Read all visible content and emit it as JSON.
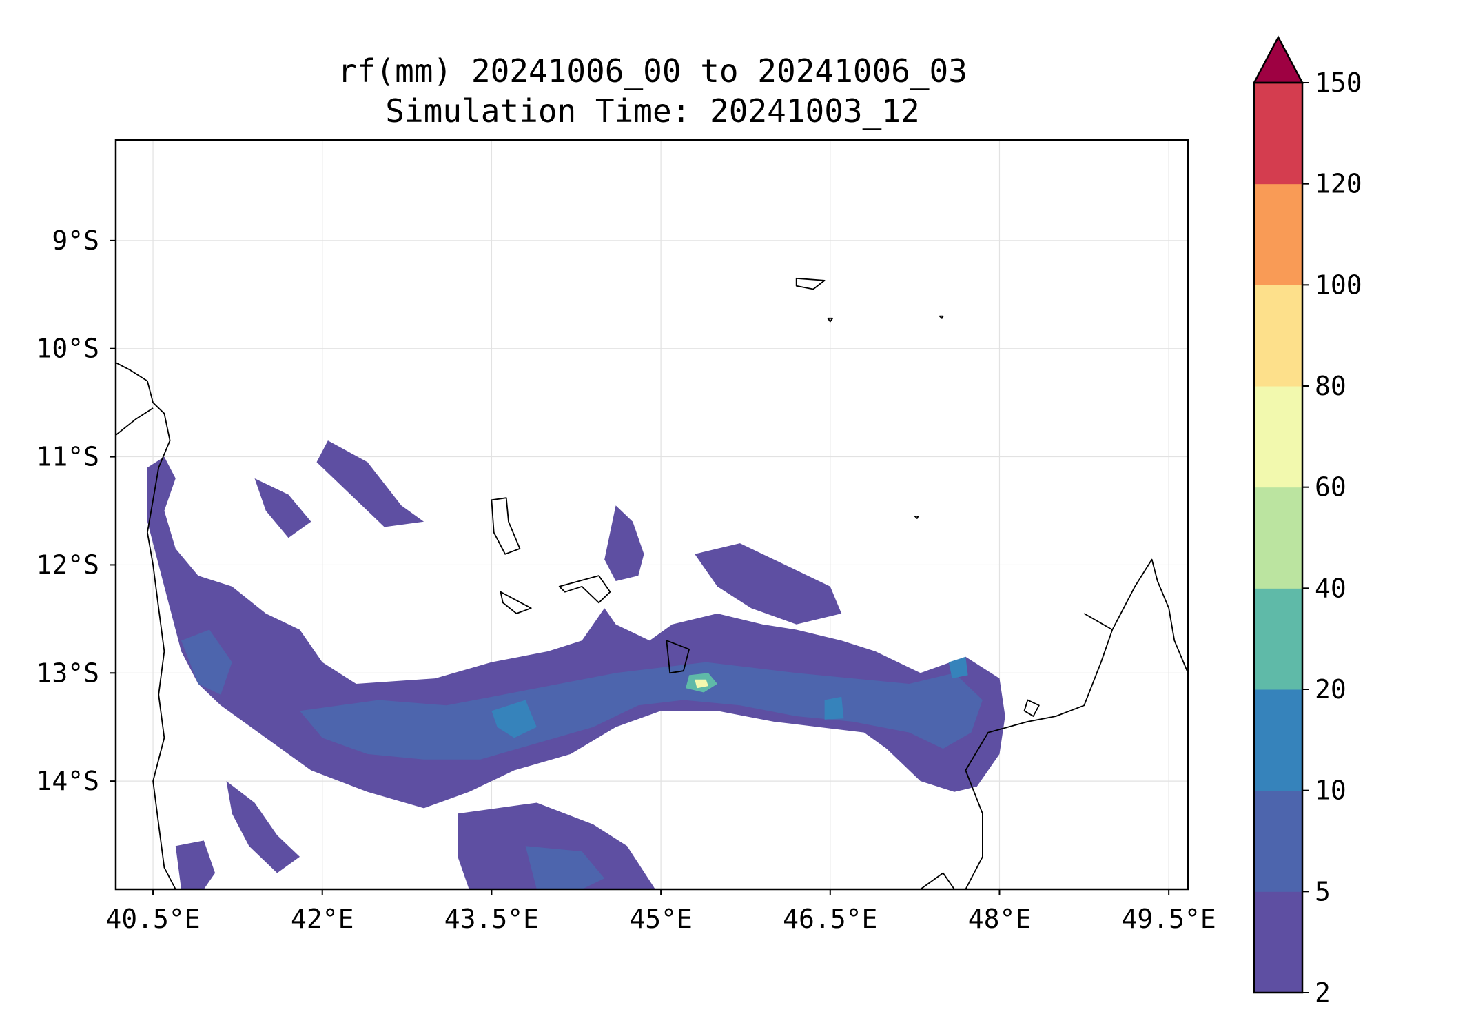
{
  "chart_data": {
    "type": "contour-map",
    "title": "rf(mm) 20241006_00 to 20241006_03",
    "subtitle": "Simulation Time: 20241003_12",
    "xlabel": "",
    "ylabel": "",
    "xlim": [
      40.17,
      49.67
    ],
    "ylim": [
      -15.0,
      -8.07
    ],
    "grid": true,
    "x_ticks": [
      {
        "value": 40.5,
        "label": "40.5°E"
      },
      {
        "value": 42.0,
        "label": "42°E"
      },
      {
        "value": 43.5,
        "label": "43.5°E"
      },
      {
        "value": 45.0,
        "label": "45°E"
      },
      {
        "value": 46.5,
        "label": "46.5°E"
      },
      {
        "value": 48.0,
        "label": "48°E"
      },
      {
        "value": 49.5,
        "label": "49.5°E"
      }
    ],
    "y_ticks": [
      {
        "value": -9,
        "label": "9°S"
      },
      {
        "value": -10,
        "label": "10°S"
      },
      {
        "value": -11,
        "label": "11°S"
      },
      {
        "value": -12,
        "label": "12°S"
      },
      {
        "value": -13,
        "label": "13°S"
      },
      {
        "value": -14,
        "label": "14°S"
      }
    ],
    "colorbar": {
      "levels": [
        2,
        5,
        10,
        20,
        40,
        60,
        80,
        100,
        120,
        150
      ],
      "labels": [
        "2",
        "5",
        "10",
        "20",
        "40",
        "60",
        "80",
        "100",
        "120",
        "150"
      ],
      "colors": [
        "#5e4fa2",
        "#4d65ad",
        "#3683bb",
        "#5fbaa8",
        "#bbe4a0",
        "#f2f9ae",
        "#fde08b",
        "#f99b56",
        "#d43d4f"
      ],
      "extend_color": "#9e0142",
      "extend": "max"
    },
    "rain_regions": [
      {
        "level": 0,
        "points": [
          [
            40.45,
            -11.1
          ],
          [
            40.6,
            -11.0
          ],
          [
            40.7,
            -11.2
          ],
          [
            40.6,
            -11.5
          ],
          [
            40.7,
            -11.85
          ],
          [
            40.9,
            -12.1
          ],
          [
            41.2,
            -12.2
          ],
          [
            41.5,
            -12.45
          ],
          [
            41.8,
            -12.6
          ],
          [
            42.0,
            -12.9
          ],
          [
            42.3,
            -13.1
          ],
          [
            43.0,
            -13.05
          ],
          [
            43.5,
            -12.9
          ],
          [
            44.0,
            -12.8
          ],
          [
            44.3,
            -12.7
          ],
          [
            44.5,
            -12.4
          ],
          [
            44.6,
            -12.55
          ],
          [
            44.9,
            -12.7
          ],
          [
            45.1,
            -12.55
          ],
          [
            45.3,
            -12.5
          ],
          [
            45.5,
            -12.45
          ],
          [
            45.9,
            -12.55
          ],
          [
            46.2,
            -12.6
          ],
          [
            46.6,
            -12.7
          ],
          [
            46.9,
            -12.8
          ],
          [
            47.3,
            -13.0
          ],
          [
            47.7,
            -12.85
          ],
          [
            48.0,
            -13.05
          ],
          [
            48.05,
            -13.4
          ],
          [
            48.0,
            -13.75
          ],
          [
            47.8,
            -14.05
          ],
          [
            47.6,
            -14.1
          ],
          [
            47.3,
            -14.0
          ],
          [
            47.0,
            -13.7
          ],
          [
            46.8,
            -13.55
          ],
          [
            46.4,
            -13.5
          ],
          [
            46.0,
            -13.45
          ],
          [
            45.5,
            -13.35
          ],
          [
            45.0,
            -13.35
          ],
          [
            44.6,
            -13.5
          ],
          [
            44.2,
            -13.75
          ],
          [
            43.7,
            -13.9
          ],
          [
            43.3,
            -14.1
          ],
          [
            42.9,
            -14.25
          ],
          [
            42.4,
            -14.1
          ],
          [
            41.9,
            -13.9
          ],
          [
            41.5,
            -13.6
          ],
          [
            41.1,
            -13.3
          ],
          [
            40.9,
            -13.1
          ],
          [
            40.75,
            -12.8
          ],
          [
            40.65,
            -12.4
          ],
          [
            40.55,
            -12.0
          ],
          [
            40.45,
            -11.6
          ]
        ]
      },
      {
        "level": 0,
        "points": [
          [
            43.2,
            -14.3
          ],
          [
            43.9,
            -14.2
          ],
          [
            44.4,
            -14.4
          ],
          [
            44.7,
            -14.6
          ],
          [
            44.95,
            -15.0
          ],
          [
            43.3,
            -15.0
          ],
          [
            43.2,
            -14.7
          ]
        ]
      },
      {
        "level": 0,
        "points": [
          [
            42.05,
            -10.85
          ],
          [
            42.4,
            -11.05
          ],
          [
            42.7,
            -11.45
          ],
          [
            42.9,
            -11.6
          ],
          [
            42.55,
            -11.65
          ],
          [
            42.2,
            -11.3
          ],
          [
            41.95,
            -11.05
          ]
        ]
      },
      {
        "level": 0,
        "points": [
          [
            41.4,
            -11.2
          ],
          [
            41.7,
            -11.35
          ],
          [
            41.9,
            -11.6
          ],
          [
            41.7,
            -11.75
          ],
          [
            41.5,
            -11.5
          ]
        ]
      },
      {
        "level": 0,
        "points": [
          [
            44.5,
            -11.95
          ],
          [
            44.6,
            -11.45
          ],
          [
            44.75,
            -11.6
          ],
          [
            44.85,
            -11.9
          ],
          [
            44.8,
            -12.1
          ],
          [
            44.6,
            -12.15
          ]
        ]
      },
      {
        "level": 0,
        "points": [
          [
            45.3,
            -11.9
          ],
          [
            45.7,
            -11.8
          ],
          [
            46.1,
            -12.0
          ],
          [
            46.5,
            -12.2
          ],
          [
            46.6,
            -12.45
          ],
          [
            46.2,
            -12.55
          ],
          [
            45.8,
            -12.4
          ],
          [
            45.5,
            -12.2
          ]
        ]
      },
      {
        "level": 0,
        "points": [
          [
            40.7,
            -14.6
          ],
          [
            40.95,
            -14.55
          ],
          [
            41.05,
            -14.85
          ],
          [
            40.95,
            -15.0
          ],
          [
            40.75,
            -15.0
          ]
        ]
      },
      {
        "level": 0,
        "points": [
          [
            41.15,
            -14.0
          ],
          [
            41.4,
            -14.2
          ],
          [
            41.6,
            -14.5
          ],
          [
            41.8,
            -14.7
          ],
          [
            41.6,
            -14.85
          ],
          [
            41.35,
            -14.6
          ],
          [
            41.2,
            -14.3
          ]
        ]
      },
      {
        "level": 1,
        "points": [
          [
            40.75,
            -12.7
          ],
          [
            41.0,
            -12.6
          ],
          [
            41.2,
            -12.9
          ],
          [
            41.1,
            -13.2
          ],
          [
            40.9,
            -13.1
          ]
        ]
      },
      {
        "level": 1,
        "points": [
          [
            41.8,
            -13.35
          ],
          [
            42.5,
            -13.25
          ],
          [
            43.1,
            -13.3
          ],
          [
            43.6,
            -13.2
          ],
          [
            44.1,
            -13.1
          ],
          [
            44.6,
            -13.0
          ],
          [
            45.0,
            -12.95
          ],
          [
            45.4,
            -12.9
          ],
          [
            45.8,
            -12.95
          ],
          [
            46.2,
            -13.0
          ],
          [
            46.7,
            -13.05
          ],
          [
            47.2,
            -13.1
          ],
          [
            47.6,
            -13.0
          ],
          [
            47.85,
            -13.25
          ],
          [
            47.75,
            -13.55
          ],
          [
            47.5,
            -13.7
          ],
          [
            47.2,
            -13.55
          ],
          [
            46.7,
            -13.45
          ],
          [
            46.2,
            -13.4
          ],
          [
            45.7,
            -13.3
          ],
          [
            45.2,
            -13.25
          ],
          [
            44.8,
            -13.3
          ],
          [
            44.4,
            -13.5
          ],
          [
            43.9,
            -13.65
          ],
          [
            43.4,
            -13.8
          ],
          [
            42.9,
            -13.8
          ],
          [
            42.4,
            -13.75
          ],
          [
            42.0,
            -13.6
          ]
        ]
      },
      {
        "level": 1,
        "points": [
          [
            43.8,
            -14.6
          ],
          [
            44.3,
            -14.65
          ],
          [
            44.5,
            -14.9
          ],
          [
            44.3,
            -15.0
          ],
          [
            43.9,
            -15.0
          ]
        ]
      },
      {
        "level": 2,
        "points": [
          [
            43.5,
            -13.35
          ],
          [
            43.8,
            -13.25
          ],
          [
            43.9,
            -13.5
          ],
          [
            43.7,
            -13.6
          ],
          [
            43.55,
            -13.5
          ]
        ]
      },
      {
        "level": 2,
        "points": [
          [
            46.45,
            -13.25
          ],
          [
            46.6,
            -13.22
          ],
          [
            46.62,
            -13.42
          ],
          [
            46.45,
            -13.43
          ]
        ]
      },
      {
        "level": 2,
        "points": [
          [
            47.55,
            -12.9
          ],
          [
            47.7,
            -12.85
          ],
          [
            47.72,
            -13.02
          ],
          [
            47.58,
            -13.05
          ]
        ]
      },
      {
        "level": 3,
        "points": [
          [
            45.25,
            -13.02
          ],
          [
            45.42,
            -13.0
          ],
          [
            45.5,
            -13.1
          ],
          [
            45.38,
            -13.18
          ],
          [
            45.22,
            -13.14
          ]
        ]
      },
      {
        "level": 5,
        "points": [
          [
            45.3,
            -13.06
          ],
          [
            45.4,
            -13.06
          ],
          [
            45.42,
            -13.12
          ],
          [
            45.32,
            -13.14
          ]
        ]
      }
    ],
    "coastlines": [
      {
        "closed": false,
        "points": [
          [
            40.17,
            -10.13
          ],
          [
            40.3,
            -10.2
          ],
          [
            40.45,
            -10.3
          ],
          [
            40.5,
            -10.5
          ],
          [
            40.6,
            -10.6
          ],
          [
            40.65,
            -10.85
          ],
          [
            40.55,
            -11.1
          ],
          [
            40.5,
            -11.4
          ],
          [
            40.45,
            -11.7
          ],
          [
            40.5,
            -12.0
          ],
          [
            40.55,
            -12.4
          ],
          [
            40.6,
            -12.8
          ],
          [
            40.55,
            -13.2
          ],
          [
            40.6,
            -13.6
          ],
          [
            40.5,
            -14.0
          ],
          [
            40.55,
            -14.4
          ],
          [
            40.6,
            -14.8
          ],
          [
            40.7,
            -15.0
          ]
        ]
      },
      {
        "closed": false,
        "points": [
          [
            40.17,
            -10.8
          ],
          [
            40.35,
            -10.65
          ],
          [
            40.5,
            -10.55
          ]
        ]
      },
      {
        "closed": false,
        "points": [
          [
            47.3,
            -15.0
          ],
          [
            47.5,
            -14.85
          ],
          [
            47.6,
            -15.0
          ]
        ]
      },
      {
        "closed": false,
        "points": [
          [
            47.7,
            -15.0
          ],
          [
            47.85,
            -14.7
          ],
          [
            47.85,
            -14.3
          ],
          [
            47.7,
            -13.9
          ],
          [
            47.9,
            -13.55
          ],
          [
            48.25,
            -13.45
          ],
          [
            48.5,
            -13.4
          ],
          [
            48.75,
            -13.3
          ],
          [
            48.9,
            -12.9
          ],
          [
            49.0,
            -12.6
          ],
          [
            49.2,
            -12.2
          ],
          [
            49.35,
            -11.95
          ],
          [
            49.4,
            -12.15
          ],
          [
            49.5,
            -12.4
          ],
          [
            49.55,
            -12.7
          ],
          [
            49.67,
            -13.0
          ]
        ]
      },
      {
        "closed": false,
        "points": [
          [
            48.75,
            -12.45
          ],
          [
            49.0,
            -12.6
          ]
        ]
      },
      {
        "closed": true,
        "points": [
          [
            43.5,
            -11.4
          ],
          [
            43.63,
            -11.38
          ],
          [
            43.65,
            -11.6
          ],
          [
            43.75,
            -11.85
          ],
          [
            43.62,
            -11.9
          ],
          [
            43.52,
            -11.7
          ]
        ]
      },
      {
        "closed": true,
        "points": [
          [
            44.1,
            -12.2
          ],
          [
            44.45,
            -12.1
          ],
          [
            44.55,
            -12.25
          ],
          [
            44.45,
            -12.35
          ],
          [
            44.3,
            -12.2
          ],
          [
            44.15,
            -12.25
          ]
        ]
      },
      {
        "closed": true,
        "points": [
          [
            43.58,
            -12.25
          ],
          [
            43.85,
            -12.4
          ],
          [
            43.72,
            -12.45
          ],
          [
            43.6,
            -12.35
          ]
        ]
      },
      {
        "closed": true,
        "points": [
          [
            45.05,
            -12.7
          ],
          [
            45.25,
            -12.78
          ],
          [
            45.2,
            -12.98
          ],
          [
            45.08,
            -13.0
          ]
        ]
      },
      {
        "closed": true,
        "points": [
          [
            46.2,
            -9.35
          ],
          [
            46.45,
            -9.37
          ],
          [
            46.35,
            -9.45
          ],
          [
            46.2,
            -9.42
          ]
        ]
      },
      {
        "closed": true,
        "points": [
          [
            46.48,
            -9.72
          ],
          [
            46.52,
            -9.72
          ],
          [
            46.5,
            -9.75
          ]
        ]
      },
      {
        "closed": true,
        "points": [
          [
            47.47,
            -9.7
          ],
          [
            47.5,
            -9.7
          ],
          [
            47.49,
            -9.72
          ]
        ]
      },
      {
        "closed": true,
        "points": [
          [
            47.25,
            -11.55
          ],
          [
            47.28,
            -11.55
          ],
          [
            47.27,
            -11.57
          ]
        ]
      },
      {
        "closed": true,
        "points": [
          [
            48.25,
            -13.25
          ],
          [
            48.35,
            -13.3
          ],
          [
            48.3,
            -13.4
          ],
          [
            48.22,
            -13.35
          ]
        ]
      }
    ]
  }
}
